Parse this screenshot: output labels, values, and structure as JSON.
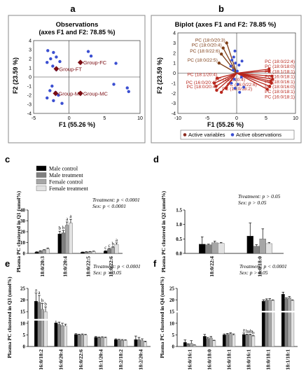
{
  "panels": {
    "a": {
      "letter": "a"
    },
    "b": {
      "letter": "b"
    },
    "c": {
      "letter": "c"
    },
    "d": {
      "letter": "d"
    },
    "e": {
      "letter": "e"
    },
    "f": {
      "letter": "f"
    }
  },
  "legend": {
    "items": [
      {
        "label": "Male control",
        "color": "#000000"
      },
      {
        "label": "Male treatment",
        "color": "#7f7f7f"
      },
      {
        "label": "Female control",
        "color": "#a6a6a6"
      },
      {
        "label": "Female treatment",
        "color": "#e2e2e2"
      }
    ]
  },
  "chart_data": [
    {
      "panel": "a",
      "type": "scatter",
      "title": "Observations",
      "subtitle": "(axes F1 and F2: 78.85 %)",
      "xlabel": "F1 (55.26 %)",
      "ylabel": "F2 (23.59 %)",
      "xlim": [
        -5,
        10
      ],
      "ylim": [
        -4,
        4
      ],
      "xticks": [
        "-5",
        "0",
        "5",
        "10"
      ],
      "yticks": [
        "4",
        "3",
        "2",
        "1",
        "0",
        "-1",
        "-2",
        "-3",
        "-4"
      ],
      "observations": [
        [
          -3.0,
          2.9
        ],
        [
          -2.2,
          2.7
        ],
        [
          -1.8,
          2.2
        ],
        [
          -2.6,
          2.0
        ],
        [
          -3.1,
          1.6
        ],
        [
          -1.3,
          1.7
        ],
        [
          -2.3,
          1.2
        ],
        [
          -1.8,
          0.8
        ],
        [
          -2.4,
          -1.0
        ],
        [
          -2.7,
          -1.5
        ],
        [
          -1.9,
          -1.7
        ],
        [
          -1.5,
          -2.0
        ],
        [
          -3.1,
          -2.3
        ],
        [
          -2.2,
          -2.6
        ],
        [
          -1.0,
          -2.9
        ],
        [
          3.1,
          2.3
        ],
        [
          2.7,
          2.8
        ],
        [
          6.6,
          1.5
        ],
        [
          6.3,
          -0.8
        ],
        [
          8.2,
          -1.2
        ],
        [
          8.4,
          -1.6
        ]
      ],
      "centroids": [
        {
          "label": "Group-FT",
          "x": -1.8,
          "y": 0.9
        },
        {
          "label": "Group-FC",
          "x": 1.6,
          "y": 1.6
        },
        {
          "label": "Group-MT",
          "x": -1.9,
          "y": -1.8
        },
        {
          "label": "Group-MC",
          "x": 1.6,
          "y": -1.8
        }
      ],
      "colors": {
        "observation": "#3b4fd1",
        "centroid": "#7a0c12"
      }
    },
    {
      "panel": "b",
      "type": "scatter",
      "title": "Biplot (axes F1 and F2: 78.85 %)",
      "xlabel": "F1 (55.26 %)",
      "ylabel": "F2 (23.59 %)",
      "xlim": [
        -10,
        10
      ],
      "ylim": [
        -4,
        4
      ],
      "xticks": [
        "-10",
        "-5",
        "0",
        "5",
        "10"
      ],
      "yticks": [
        "4",
        "3",
        "2",
        "1",
        "0",
        "-1",
        "-2",
        "-3",
        "-4"
      ],
      "variables": [
        {
          "label": "PC (18:0/20:3)",
          "x": -1.7,
          "y": 3.0
        },
        {
          "label": "PC (18:0/20:4)",
          "x": -2.3,
          "y": 2.5
        },
        {
          "label": "PC (18:0/22:6)",
          "x": -2.6,
          "y": 1.9
        },
        {
          "label": "PC (18:0/22:5)",
          "x": -3.0,
          "y": 1.0
        },
        {
          "label": "PC (18:0/22:4)",
          "x": 5.5,
          "y": 0.4
        },
        {
          "label": "PC (18:0/18:0)",
          "x": 5.5,
          "y": 0.2
        },
        {
          "label": "PC (18:1/18:1)",
          "x": 6.0,
          "y": -0.3
        },
        {
          "label": "PC (16:0/18:1)",
          "x": 6.1,
          "y": -0.6
        },
        {
          "label": "PC (18:0/16:1)",
          "x": 5.8,
          "y": -0.8
        },
        {
          "label": "PC (18:0/16:0)",
          "x": 5.9,
          "y": -1.0
        },
        {
          "label": "PC (18:0/18:1)",
          "x": 5.6,
          "y": -1.3
        },
        {
          "label": "PC (16:0/18:1)",
          "x": 5.2,
          "y": -1.6
        },
        {
          "label": "PC (18:1/20:4)",
          "x": -3.3,
          "y": -0.5
        },
        {
          "label": "PC (18:2/20:4)",
          "x": -3.8,
          "y": -1.0
        },
        {
          "label": "PC (16:0/20:4)",
          "x": -3.5,
          "y": -1.3
        },
        {
          "label": "PC (16:0/22:6)",
          "x": -1.8,
          "y": -1.5
        },
        {
          "label": "PC (18:0/20:4)",
          "x": -3.4,
          "y": -1.7
        },
        {
          "label": "PC (16:0/18:2)",
          "x": -2.6,
          "y": -1.9
        }
      ],
      "observations": [
        [
          -0.3,
          2.2
        ],
        [
          -0.5,
          1.6
        ],
        [
          -0.8,
          1.3
        ],
        [
          -0.2,
          1.0
        ],
        [
          -1.0,
          0.7
        ],
        [
          0.4,
          0.8
        ],
        [
          -0.6,
          0.3
        ],
        [
          0.1,
          0.2
        ],
        [
          -0.4,
          -0.6
        ],
        [
          -0.9,
          -1.0
        ],
        [
          0.2,
          -1.1
        ],
        [
          -0.3,
          -1.5
        ],
        [
          0.5,
          -1.9
        ],
        [
          0.8,
          -0.4
        ],
        [
          0.9,
          1.2
        ],
        [
          1.2,
          -1.4
        ]
      ],
      "legend": [
        {
          "label": "Active variables",
          "color": "#8c2b1f"
        },
        {
          "label": "Active observations",
          "color": "#3b4fd1"
        }
      ],
      "colors": {
        "variable": "#b8261c",
        "variable_upper": "#7f3f18",
        "observation": "#3b4fd1"
      }
    },
    {
      "panel": "c",
      "type": "bar",
      "ylabel": "Plasma PC clustered in Q1 (umol%)",
      "ylim": [
        0,
        40
      ],
      "yticks": [
        "40",
        "30",
        "20",
        "10",
        "0"
      ],
      "categories": [
        "18:0/20:3",
        "18:0/20:4",
        "18:0/22:5",
        "18:0/22:6"
      ],
      "series": [
        {
          "name": "Male control",
          "values": [
            1.2,
            18.0,
            1.1,
            2.1
          ],
          "errors": [
            0.3,
            2.5,
            0.2,
            0.4
          ]
        },
        {
          "name": "Male treatment",
          "values": [
            2.0,
            19.0,
            1.3,
            4.0
          ],
          "errors": [
            0.5,
            2.0,
            0.3,
            0.6
          ]
        },
        {
          "name": "Female control",
          "values": [
            3.0,
            26.0,
            1.5,
            5.5
          ],
          "errors": [
            0.5,
            3.0,
            0.3,
            0.7
          ]
        },
        {
          "name": "Female treatment",
          "values": [
            4.2,
            28.0,
            1.7,
            8.2
          ],
          "errors": [
            0.8,
            3.5,
            0.4,
            1.5
          ]
        }
      ],
      "letters": [
        [
          "",
          "",
          "",
          ""
        ],
        [
          "b",
          "b",
          "a",
          "a"
        ],
        [
          "",
          "",
          "",
          ""
        ],
        [
          "c",
          "c",
          "b",
          "a"
        ]
      ],
      "stats": [
        "Treatment: p < 0.0001",
        "Sex: p < 0.0001"
      ]
    },
    {
      "panel": "d",
      "type": "bar",
      "ylabel": "Plasma PC clustered in Q2 (umol%)",
      "ylim": [
        0,
        1.5
      ],
      "yticks": [
        "1.5",
        "1.0",
        "0.5",
        "0.0"
      ],
      "categories": [
        "18:0/22:4",
        "18:0/18:0"
      ],
      "series": [
        {
          "name": "Male control",
          "values": [
            0.32,
            0.6
          ],
          "errors": [
            0.25,
            0.45
          ]
        },
        {
          "name": "Male treatment",
          "values": [
            0.3,
            0.25
          ],
          "errors": [
            0.02,
            0.05
          ]
        },
        {
          "name": "Female control",
          "values": [
            0.37,
            0.5
          ],
          "errors": [
            0.05,
            0.35
          ]
        },
        {
          "name": "Female treatment",
          "values": [
            0.35,
            0.34
          ],
          "errors": [
            0.03,
            0.04
          ]
        }
      ],
      "stats": [
        "Treatment: p > 0.05",
        "Sex: p > 0.05"
      ]
    },
    {
      "panel": "e",
      "type": "bar",
      "ylabel": "Plasma PC clustered in Q3 (umol%)",
      "ylim": [
        0,
        25
      ],
      "yticks": [
        "25",
        "20",
        "15",
        "10",
        "5",
        "0"
      ],
      "categories": [
        "16:0/18:2",
        "16:0/20:4",
        "16:0/22:6",
        "18:1/20:4",
        "18:2/18:2",
        "18:2/20:4"
      ],
      "series": [
        {
          "name": "Male control",
          "values": [
            19.5,
            10.2,
            5.2,
            4.0,
            3.0,
            3.0
          ],
          "errors": [
            3.5,
            1.2,
            0.3,
            0.3,
            0.3,
            1.5
          ]
        },
        {
          "name": "Male treatment",
          "values": [
            19.0,
            9.5,
            5.0,
            3.8,
            2.8,
            2.9
          ],
          "errors": [
            3.0,
            1.0,
            0.3,
            0.3,
            0.3,
            1.0
          ]
        },
        {
          "name": "Female control",
          "values": [
            16.0,
            9.0,
            5.1,
            3.9,
            2.7,
            2.5
          ],
          "errors": [
            2.5,
            1.0,
            0.3,
            0.3,
            0.3,
            0.8
          ]
        },
        {
          "name": "Female treatment",
          "values": [
            15.0,
            8.8,
            4.9,
            3.7,
            2.6,
            1.9
          ],
          "errors": [
            2.0,
            0.8,
            0.3,
            0.3,
            0.3,
            0.4
          ]
        }
      ],
      "letters": [
        [
          "a",
          "a",
          "b",
          "b"
        ],
        [
          "",
          "",
          "",
          ""
        ],
        [
          "",
          "",
          "",
          ""
        ],
        [
          "",
          "",
          "",
          ""
        ],
        [
          "",
          "",
          "",
          ""
        ],
        [
          "",
          "",
          "",
          ""
        ]
      ],
      "stats": [
        "Treatment: p < 0.0001",
        "Sex: p > 0.05"
      ]
    },
    {
      "panel": "f",
      "type": "bar",
      "ylabel": "Plasma PC clustered in Q4 (umol%)",
      "ylim": [
        0,
        25
      ],
      "yticks": [
        "25",
        "20",
        "15",
        "10",
        "5",
        "0"
      ],
      "categories": [
        "16:0/16:1",
        "16:0/18:0",
        "16:0/18:1",
        "18:0/16:1",
        "18:0/18:1",
        "18:1/18:1"
      ],
      "series": [
        {
          "name": "Male control",
          "values": [
            1.8,
            4.4,
            5.0,
            5.2,
            19.5,
            22.5
          ],
          "errors": [
            1.0,
            0.8,
            0.4,
            0.6,
            0.6,
            0.9
          ]
        },
        {
          "name": "Male treatment",
          "values": [
            0.9,
            3.4,
            5.2,
            5.0,
            20.0,
            20.5
          ],
          "errors": [
            0.3,
            0.5,
            0.4,
            0.3,
            0.5,
            0.4
          ]
        },
        {
          "name": "Female control",
          "values": [
            1.3,
            3.7,
            5.5,
            5.0,
            20.0,
            21.0
          ],
          "errors": [
            1.2,
            0.6,
            0.4,
            0.3,
            0.6,
            0.5
          ]
        },
        {
          "name": "Female treatment",
          "values": [
            0.5,
            2.5,
            4.9,
            4.5,
            19.8,
            19.8
          ],
          "errors": [
            0.2,
            0.2,
            0.5,
            0.2,
            0.3,
            0.3
          ]
        }
      ],
      "letters": [
        [
          "",
          "",
          "",
          ""
        ],
        [
          "",
          "",
          "",
          ""
        ],
        [
          "",
          "",
          "",
          ""
        ],
        [
          "a",
          "b",
          "ab",
          "b"
        ],
        [
          "",
          "",
          "",
          ""
        ],
        [
          "",
          "",
          "",
          ""
        ]
      ],
      "stats": [
        "Treatment: p < 0.0001",
        "Sex: p > 0.05"
      ]
    }
  ]
}
